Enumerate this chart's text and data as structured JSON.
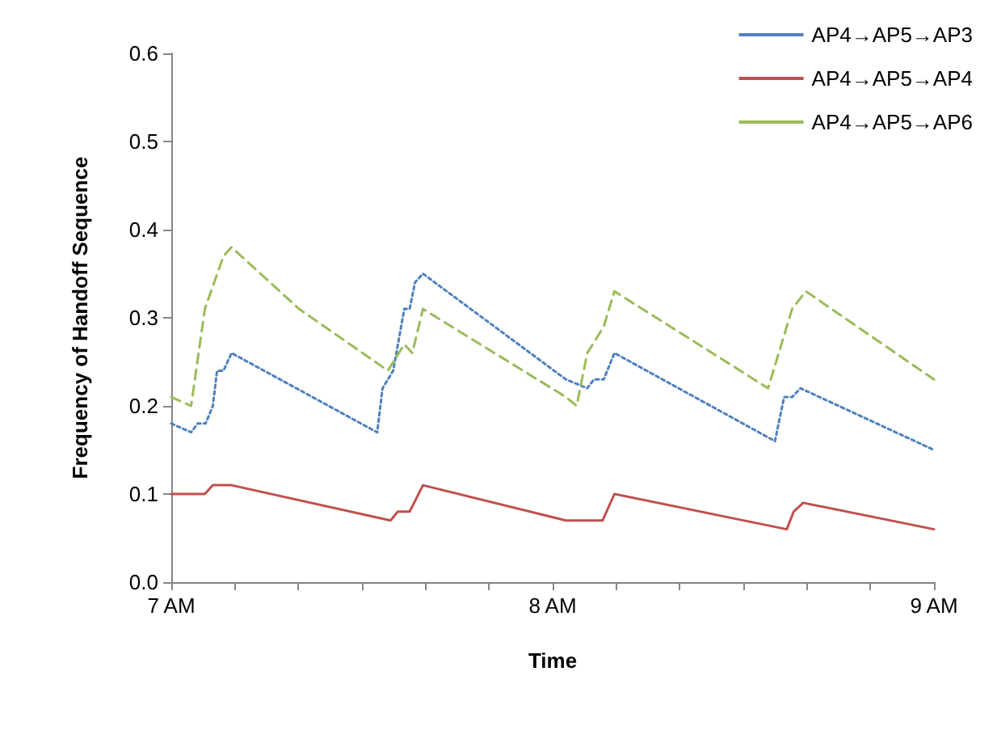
{
  "chart_data": {
    "type": "line",
    "xlabel": "Time",
    "ylabel": "Frequency of Handoff Sequence",
    "xlim": [
      7,
      9
    ],
    "xticks": [
      {
        "value": 7,
        "label": "7 AM"
      },
      {
        "value": 7.1667,
        "label": null
      },
      {
        "value": 7.3333,
        "label": null
      },
      {
        "value": 7.5,
        "label": null
      },
      {
        "value": 7.6667,
        "label": null
      },
      {
        "value": 7.8333,
        "label": null
      },
      {
        "value": 8,
        "label": "8 AM"
      },
      {
        "value": 8.1667,
        "label": null
      },
      {
        "value": 8.3333,
        "label": null
      },
      {
        "value": 8.5,
        "label": null
      },
      {
        "value": 8.6667,
        "label": null
      },
      {
        "value": 8.8333,
        "label": null
      },
      {
        "value": 9,
        "label": "9 AM"
      }
    ],
    "ylim": [
      0,
      0.6
    ],
    "yticks": [
      {
        "value": 0,
        "label": "0.0"
      },
      0.1,
      0.2,
      0.3,
      0.4,
      0.5,
      0.6
    ],
    "grid": false,
    "legend": "top right",
    "marker": "none",
    "series": [
      {
        "name": "AP4→AP5→AP3",
        "color": "#4f81bd",
        "line_style": "dotted",
        "x": [
          7,
          7.052,
          7.069,
          7.09,
          7.109,
          7.12,
          7.137,
          7.158,
          7.54,
          7.554,
          7.582,
          7.611,
          7.625,
          7.639,
          7.66,
          8.035,
          8.091,
          8.108,
          8.134,
          8.162,
          8.583,
          8.607,
          8.628,
          8.65,
          9
        ],
        "values": [
          0.18,
          0.17,
          0.18,
          0.18,
          0.2,
          0.24,
          0.24,
          0.26,
          0.17,
          0.22,
          0.24,
          0.31,
          0.31,
          0.34,
          0.35,
          0.23,
          0.22,
          0.23,
          0.23,
          0.26,
          0.16,
          0.21,
          0.21,
          0.22,
          0.15
        ]
      },
      {
        "name": "AP4→AP5→AP4",
        "color": "#c0504d",
        "line_style": "solid",
        "x": [
          7,
          7.088,
          7.109,
          7.158,
          7.575,
          7.594,
          7.625,
          7.66,
          8.035,
          8.131,
          8.162,
          8.614,
          8.632,
          8.657,
          9
        ],
        "values": [
          0.1,
          0.1,
          0.11,
          0.11,
          0.07,
          0.08,
          0.08,
          0.11,
          0.07,
          0.07,
          0.1,
          0.06,
          0.08,
          0.09,
          0.06
        ]
      },
      {
        "name": "AP4→AP5→AP6",
        "color": "#9bbb59",
        "line_style": "dashed",
        "x": [
          7,
          7.052,
          7.088,
          7.137,
          7.158,
          7.335,
          7.568,
          7.611,
          7.632,
          7.66,
          8.035,
          8.063,
          8.091,
          8.134,
          8.162,
          8.565,
          8.628,
          8.664,
          9
        ],
        "values": [
          0.21,
          0.2,
          0.31,
          0.37,
          0.38,
          0.31,
          0.24,
          0.27,
          0.26,
          0.31,
          0.21,
          0.2,
          0.26,
          0.29,
          0.33,
          0.22,
          0.31,
          0.33,
          0.23
        ]
      }
    ]
  }
}
